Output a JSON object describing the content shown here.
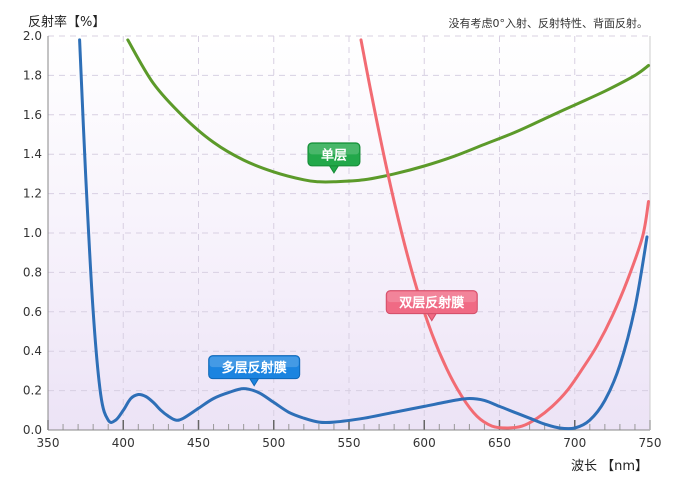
{
  "chart_data": {
    "type": "line",
    "ylabel": "反射率【%】",
    "xlabel": "波长 【nm】",
    "note": "没有考虑0°入射、反射特性、背面反射。",
    "xlim": [
      350,
      750
    ],
    "ylim": [
      0,
      2.0
    ],
    "x_ticks": [
      350,
      400,
      450,
      500,
      550,
      600,
      650,
      700,
      750
    ],
    "y_ticks": [
      0.0,
      0.2,
      0.4,
      0.6,
      0.8,
      1.0,
      1.2,
      1.4,
      1.6,
      1.8,
      2.0
    ],
    "x_tick_labels": [
      "350",
      "400",
      "450",
      "500",
      "550",
      "600",
      "650",
      "700",
      "750"
    ],
    "y_tick_labels": [
      "0.0",
      "0.2",
      "0.4",
      "0.6",
      "0.8",
      "1.0",
      "1.2",
      "1.4",
      "1.6",
      "1.8",
      "2.0"
    ],
    "grid": true,
    "series": [
      {
        "name": "单层",
        "color": "#5c9a2a",
        "x": [
          403,
          420,
          440,
          460,
          480,
          500,
          520,
          530,
          540,
          560,
          580,
          600,
          620,
          640,
          660,
          680,
          700,
          720,
          740,
          749
        ],
        "y": [
          1.98,
          1.76,
          1.59,
          1.46,
          1.37,
          1.31,
          1.27,
          1.26,
          1.26,
          1.27,
          1.3,
          1.34,
          1.39,
          1.45,
          1.51,
          1.58,
          1.65,
          1.72,
          1.8,
          1.85
        ]
      },
      {
        "name": "双层反射膜",
        "color": "#f26b73",
        "x": [
          558,
          565,
          575,
          585,
          595,
          605,
          615,
          625,
          635,
          645,
          655,
          665,
          675,
          685,
          695,
          705,
          715,
          725,
          735,
          745,
          749
        ],
        "y": [
          1.98,
          1.7,
          1.33,
          1.0,
          0.72,
          0.49,
          0.31,
          0.17,
          0.07,
          0.02,
          0.01,
          0.02,
          0.06,
          0.12,
          0.2,
          0.31,
          0.43,
          0.58,
          0.76,
          0.98,
          1.16
        ]
      },
      {
        "name": "多层反射膜",
        "color": "#2e6fb7",
        "x": [
          371,
          375,
          380,
          385,
          390,
          395,
          400,
          405,
          410,
          415,
          420,
          425,
          430,
          435,
          440,
          450,
          460,
          470,
          480,
          490,
          500,
          510,
          520,
          530,
          540,
          560,
          580,
          600,
          620,
          630,
          640,
          650,
          660,
          670,
          680,
          690,
          700,
          710,
          720,
          730,
          740,
          748
        ],
        "y": [
          1.98,
          1.3,
          0.6,
          0.18,
          0.05,
          0.05,
          0.1,
          0.16,
          0.18,
          0.17,
          0.14,
          0.1,
          0.07,
          0.05,
          0.06,
          0.11,
          0.16,
          0.19,
          0.21,
          0.19,
          0.14,
          0.09,
          0.06,
          0.04,
          0.04,
          0.06,
          0.09,
          0.12,
          0.15,
          0.16,
          0.15,
          0.12,
          0.09,
          0.06,
          0.03,
          0.01,
          0.01,
          0.05,
          0.15,
          0.33,
          0.62,
          0.98
        ]
      }
    ],
    "callouts": [
      {
        "text": "单层",
        "color": "#22a84a",
        "border": "#158a36",
        "anchor_x": 540,
        "anchor_y": 1.3
      },
      {
        "text": "双层反射膜",
        "color": "#f06a84",
        "border": "#d24e69",
        "anchor_x": 605,
        "anchor_y": 0.55
      },
      {
        "text": "多层反射膜",
        "color": "#1b84e0",
        "border": "#0f67b6",
        "anchor_x": 487,
        "anchor_y": 0.22
      }
    ]
  }
}
